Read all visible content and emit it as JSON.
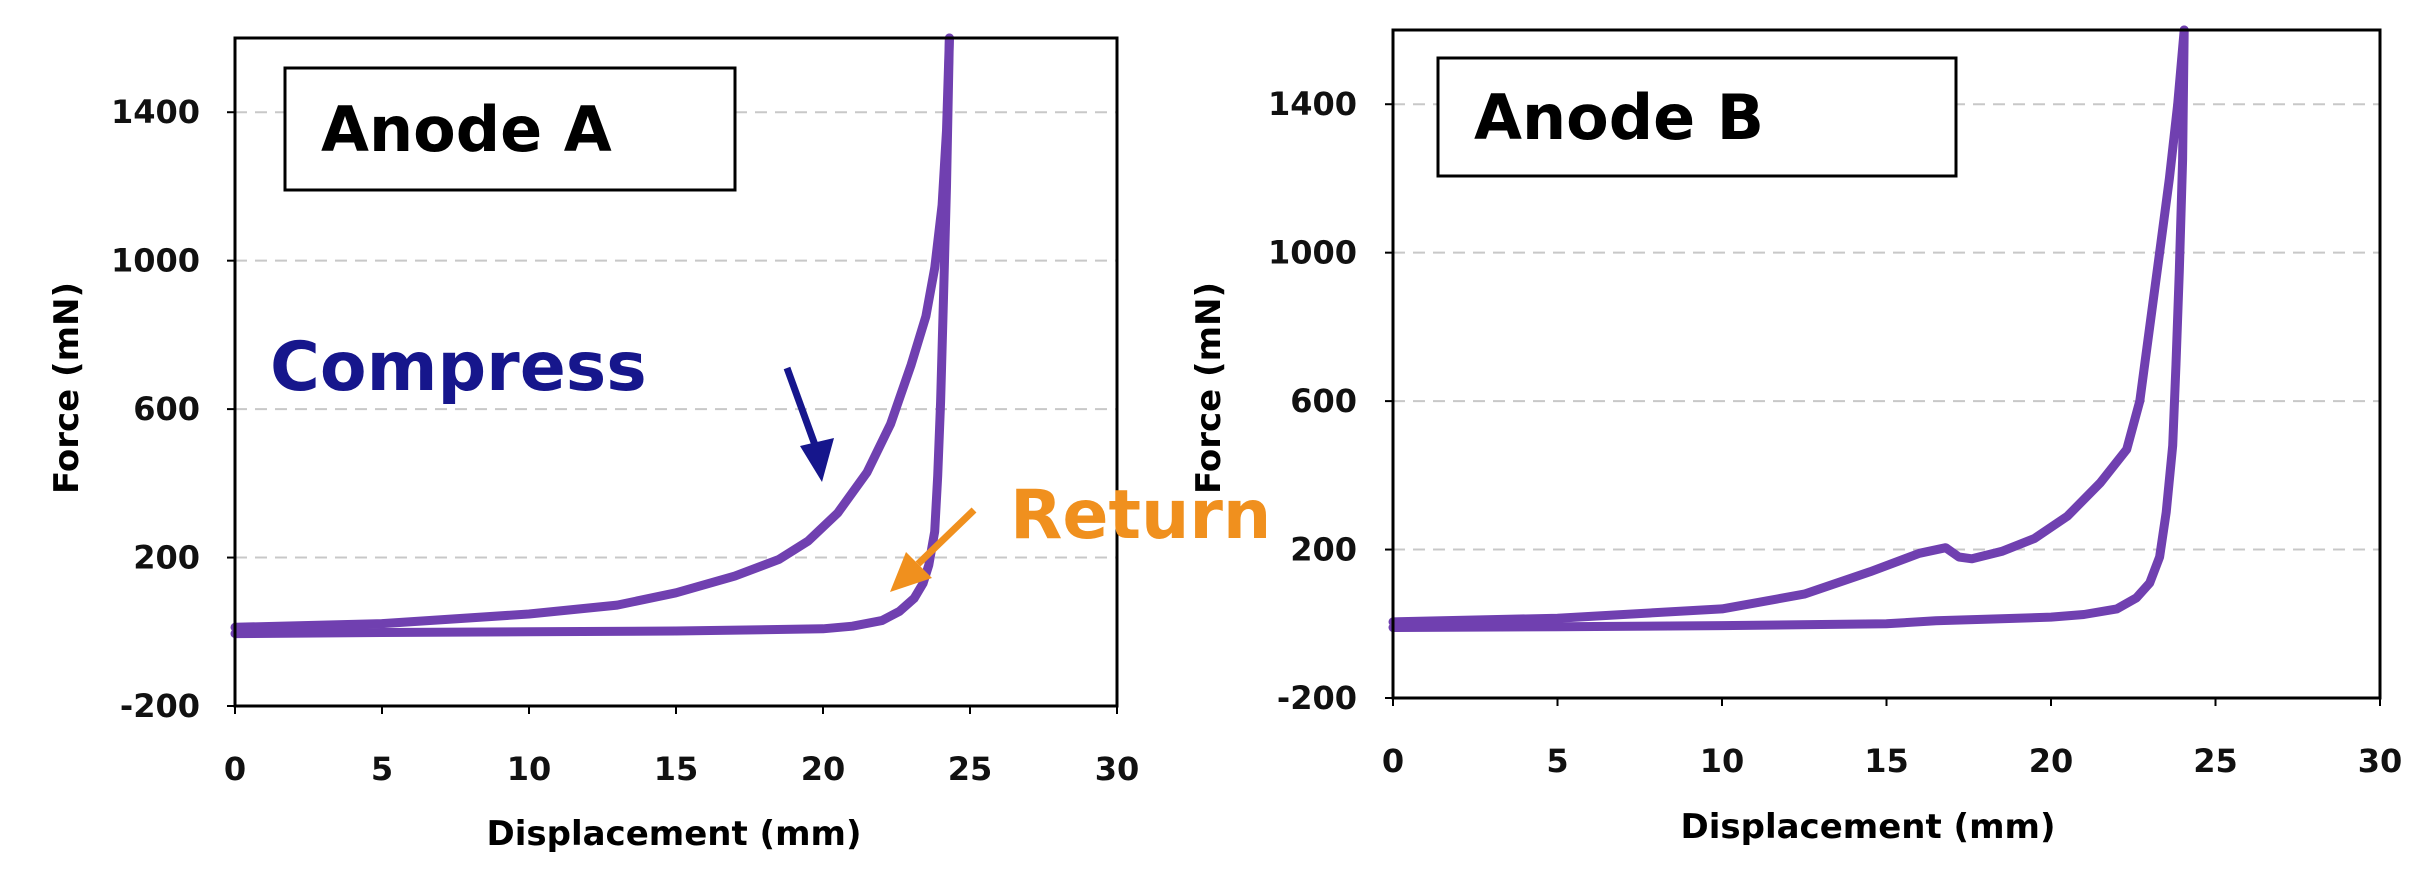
{
  "colors": {
    "curve": "#7040B0",
    "compress": "#16168C",
    "return": "#F0901E",
    "grid": "#C8C8C8"
  },
  "chart_data": [
    {
      "type": "line",
      "panel_label": "Anode A",
      "xlabel": "Displacement (mm)",
      "ylabel": "Force (mN)",
      "xlim": [
        0,
        30
      ],
      "ylim": [
        -200,
        1600
      ],
      "xticks": [
        0,
        5,
        10,
        15,
        20,
        25,
        30
      ],
      "yticks": [
        -200,
        200,
        600,
        1000,
        1400
      ],
      "grid": "horizontal dashed",
      "series": [
        {
          "x": [
            0,
            5,
            10,
            13,
            15,
            17,
            18.5,
            19.5,
            20.5,
            21.5,
            22.3,
            23.0,
            23.5,
            23.8,
            24.05,
            24.2,
            24.3
          ],
          "y": [
            12,
            22,
            48,
            72,
            105,
            150,
            195,
            245,
            320,
            430,
            560,
            720,
            850,
            980,
            1150,
            1350,
            1600
          ]
        },
        {
          "x": [
            24.3,
            24.2,
            24.1,
            24.0,
            23.9,
            23.8,
            23.6,
            23.4,
            23.1,
            22.6,
            22.0,
            21.0,
            20.0,
            15.0,
            10.0,
            5.0,
            0
          ],
          "y": [
            1600,
            1200,
            900,
            620,
            420,
            270,
            180,
            130,
            90,
            55,
            30,
            15,
            8,
            2,
            0,
            -2,
            -5
          ]
        }
      ],
      "annotations": [
        {
          "text": "Compress",
          "color": "compress"
        },
        {
          "text": "Return",
          "color": "return"
        }
      ]
    },
    {
      "type": "line",
      "panel_label": "Anode B",
      "xlabel": "Displacement (mm)",
      "ylabel": "Force (mN)",
      "xlim": [
        0,
        30
      ],
      "ylim": [
        -200,
        1600
      ],
      "xticks": [
        0,
        5,
        10,
        15,
        20,
        25,
        30
      ],
      "yticks": [
        -200,
        200,
        600,
        1000,
        1400
      ],
      "grid": "horizontal dashed",
      "series": [
        {
          "x": [
            0,
            5,
            10,
            12.5,
            14.5,
            16.0,
            16.8,
            17.2,
            17.6,
            18.5,
            19.5,
            20.5,
            21.5,
            22.3,
            22.7,
            23.0,
            23.3,
            23.6,
            23.85,
            24.05
          ],
          "y": [
            5,
            15,
            40,
            80,
            140,
            190,
            205,
            180,
            175,
            195,
            230,
            290,
            380,
            470,
            600,
            800,
            1000,
            1200,
            1400,
            1600
          ]
        },
        {
          "x": [
            24.05,
            24.0,
            23.9,
            23.8,
            23.7,
            23.5,
            23.3,
            23.0,
            22.6,
            22.0,
            21.0,
            20.0,
            18.0,
            16.5,
            15.0,
            10.0,
            5.0,
            0
          ],
          "y": [
            1600,
            1250,
            950,
            700,
            480,
            300,
            180,
            110,
            70,
            40,
            25,
            18,
            12,
            8,
            0,
            -5,
            -8,
            -10
          ]
        }
      ]
    }
  ]
}
